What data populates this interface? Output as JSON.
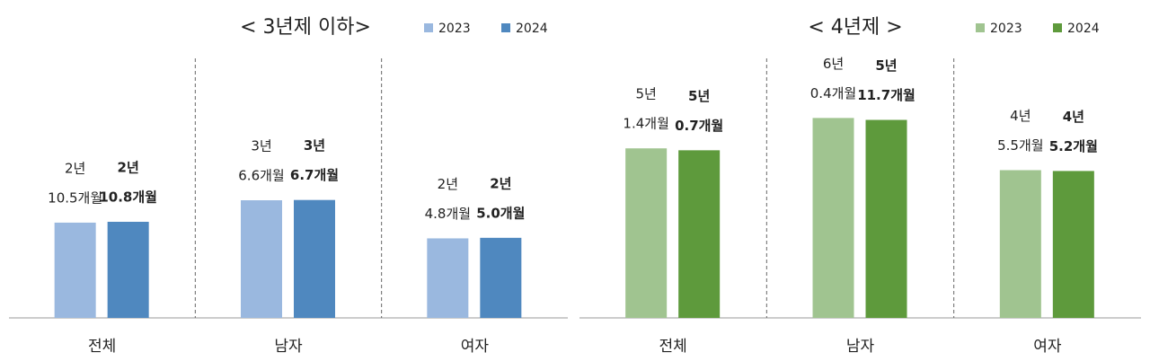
{
  "chart_data": [
    {
      "type": "bar",
      "title": "< 3년제 이하>",
      "categories": [
        "전체",
        "남자",
        "여자"
      ],
      "series": [
        {
          "name": "2023",
          "color": "#9ab8df",
          "values": [
            34.5,
            42.6,
            28.8
          ],
          "value_labels": [
            [
              "2년",
              "10.5개월"
            ],
            [
              "3년",
              "6.6개월"
            ],
            [
              "2년",
              "4.8개월"
            ]
          ]
        },
        {
          "name": "2024",
          "color": "#4f88bf",
          "values": [
            34.8,
            42.7,
            29.0
          ],
          "value_labels": [
            [
              "2년",
              "10.8개월"
            ],
            [
              "3년",
              "6.7개월"
            ],
            [
              "2년",
              "5.0개월"
            ]
          ]
        }
      ]
    },
    {
      "type": "bar",
      "title": "< 4년제 >",
      "categories": [
        "전체",
        "남자",
        "여자"
      ],
      "series": [
        {
          "name": "2023",
          "color": "#a0c490",
          "values": [
            61.4,
            72.4,
            53.5
          ],
          "value_labels": [
            [
              "5년",
              "1.4개월"
            ],
            [
              "6년",
              "0.4개월"
            ],
            [
              "4년",
              "5.5개월"
            ]
          ]
        },
        {
          "name": "2024",
          "color": "#5e9a3c",
          "values": [
            60.7,
            71.7,
            53.2
          ],
          "value_labels": [
            [
              "5년",
              "0.7개월"
            ],
            [
              "5년",
              "11.7개월"
            ],
            [
              "4년",
              "5.2개월"
            ]
          ]
        }
      ]
    }
  ]
}
